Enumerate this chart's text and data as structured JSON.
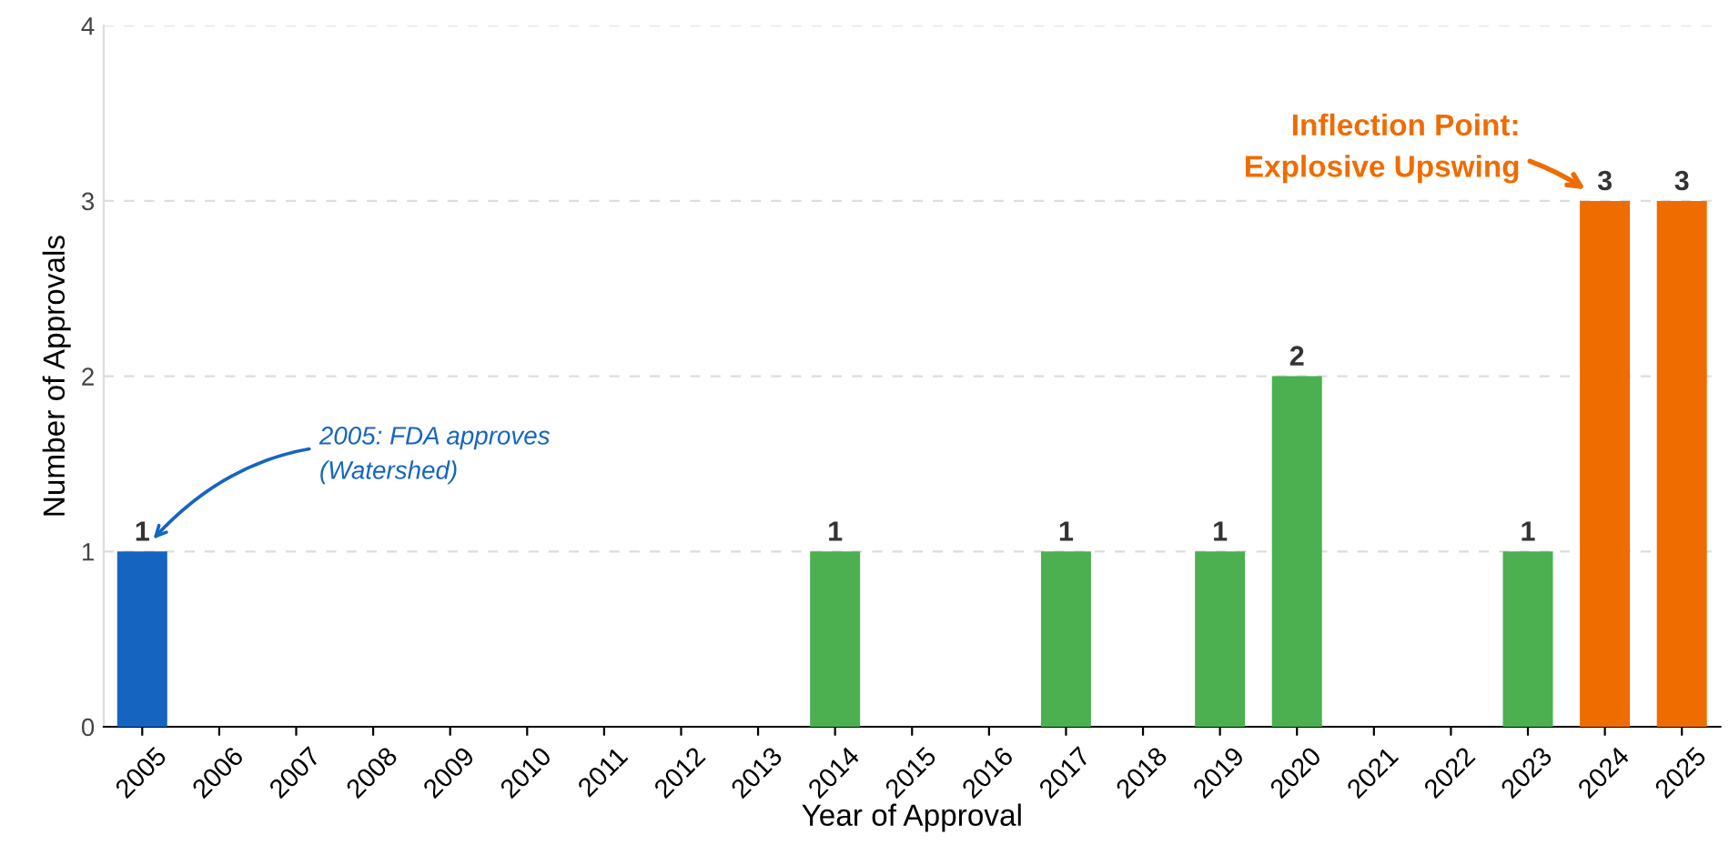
{
  "chart_data": {
    "type": "bar",
    "xlabel": "Year of Approval",
    "ylabel": "Number of Approvals",
    "categories": [
      "2005",
      "2006",
      "2007",
      "2008",
      "2009",
      "2010",
      "2011",
      "2012",
      "2013",
      "2014",
      "2015",
      "2016",
      "2017",
      "2018",
      "2019",
      "2020",
      "2021",
      "2022",
      "2023",
      "2024",
      "2025"
    ],
    "values": [
      1,
      0,
      0,
      0,
      0,
      0,
      0,
      0,
      0,
      1,
      0,
      0,
      1,
      0,
      1,
      2,
      0,
      0,
      1,
      3,
      3
    ],
    "colors": [
      "#1565c0",
      "#4caf50",
      "#4caf50",
      "#4caf50",
      "#4caf50",
      "#4caf50",
      "#4caf50",
      "#4caf50",
      "#4caf50",
      "#4caf50",
      "#4caf50",
      "#4caf50",
      "#4caf50",
      "#4caf50",
      "#4caf50",
      "#4caf50",
      "#4caf50",
      "#4caf50",
      "#4caf50",
      "#ef6c00",
      "#ef6c00"
    ],
    "value_labels": [
      "1",
      null,
      null,
      null,
      null,
      null,
      null,
      null,
      null,
      "1",
      null,
      null,
      "1",
      null,
      "1",
      "2",
      null,
      null,
      "1",
      "3",
      "3"
    ],
    "ylim": [
      0,
      4
    ],
    "yticks": [
      0,
      1,
      2,
      3,
      4
    ],
    "grid": "y",
    "annotations": [
      "2005: FDA approves\n(Watershed)",
      {
        "text": "Inflection Point:\nExplosive Upswing",
        "x": "2024",
        "y": 3
      }
    ]
  }
}
